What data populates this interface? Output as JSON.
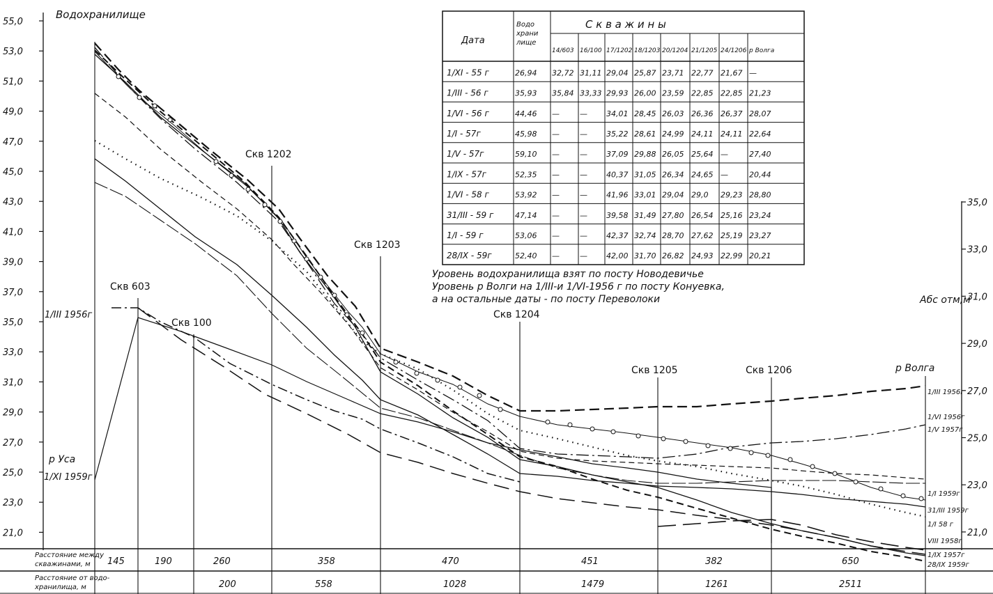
{
  "labels": {
    "reservoir": "Водохранилище",
    "usa": "р Уса",
    "usa_date": "1/XI 1959г",
    "marker_1956": "1/III 1956г",
    "volga": "р Волга",
    "abs": "Абс отм,м",
    "wells": [
      {
        "name": "Скв 603"
      },
      {
        "name": "Скв 100"
      },
      {
        "name": "Скв 1202"
      },
      {
        "name": "Скв 1203"
      },
      {
        "name": "Скв 1204"
      },
      {
        "name": "Скв 1205"
      },
      {
        "name": "Скв 1206"
      }
    ]
  },
  "left_axis_ticks": [
    "55,0",
    "53,0",
    "51,0",
    "49,0",
    "47,0",
    "45,0",
    "43,0",
    "41,0",
    "39,0",
    "37,0",
    "35,0",
    "33,0",
    "31,0",
    "29,0",
    "27,0",
    "25,0",
    "23,0",
    "21,0"
  ],
  "right_axis_ticks": [
    "35,0",
    "33,0",
    "31,0",
    "29,0",
    "27,0",
    "25,0",
    "23,0",
    "21,0"
  ],
  "right_line_labels": [
    "1/III 1956г",
    "1/VI 1956г",
    "1/V 1957г",
    "1/I 1959г",
    "31/III 1959г",
    "1/I 58 г",
    "VIII 1958г",
    "1/IX 1957г",
    "28/IX 1959г"
  ],
  "table": {
    "head_date": "Дата",
    "head_res": "Водо храни лище",
    "head_wells": "С к в а ж и н ы",
    "cols": [
      "14/603",
      "16/100",
      "17/1202",
      "18/1203",
      "20/1204",
      "21/1205",
      "24/1206",
      "р Волга"
    ],
    "rows": [
      [
        "1/XI - 55 г",
        "26,94",
        "32,72",
        "31,11",
        "29,04",
        "25,87",
        "23,71",
        "22,77",
        "21,67",
        "—"
      ],
      [
        "1/III - 56 г",
        "35,93",
        "35,84",
        "33,33",
        "29,93",
        "26,00",
        "23,59",
        "22,85",
        "22,85",
        "21,23"
      ],
      [
        "1/VI - 56 г",
        "44,46",
        "—",
        "—",
        "34,01",
        "28,45",
        "26,03",
        "26,36",
        "26,37",
        "28,07"
      ],
      [
        "1/I - 57г",
        "45,98",
        "—",
        "—",
        "35,22",
        "28,61",
        "24,99",
        "24,11",
        "24,11",
        "22,64"
      ],
      [
        "1/V - 57г",
        "59,10",
        "—",
        "—",
        "37,09",
        "29,88",
        "26,05",
        "25,64",
        "—",
        "27,40"
      ],
      [
        "1/IX - 57г",
        "52,35",
        "—",
        "—",
        "40,37",
        "31,05",
        "26,34",
        "24,65",
        "—",
        "20,44"
      ],
      [
        "1/VI - 58 г",
        "53,92",
        "—",
        "—",
        "41,96",
        "33,01",
        "29,04",
        "29,0",
        "29,23",
        "28,80"
      ],
      [
        "31/III - 59 г",
        "47,14",
        "—",
        "—",
        "39,58",
        "31,49",
        "27,80",
        "26,54",
        "25,16",
        "23,24"
      ],
      [
        "1/I - 59 г",
        "53,06",
        "—",
        "—",
        "42,37",
        "32,74",
        "28,70",
        "27,62",
        "25,19",
        "23,27"
      ],
      [
        "28/IX - 59г",
        "52,40",
        "—",
        "—",
        "42,00",
        "31,70",
        "26,82",
        "24,93",
        "22,99",
        "20,21"
      ]
    ]
  },
  "notes": [
    "Уровень водохранилища взят по посту Новодевичье",
    "Уровень р Волги на 1/III-и 1/VI-1956 г по посту Конуевка,",
    "а на остальные даты - по посту Переволоки"
  ],
  "bottom": {
    "row1_label": [
      "Расстояние между",
      "скважинами, м"
    ],
    "row2_label": [
      "Расстояние от водо-",
      "хранилища, м"
    ],
    "row1_values": [
      "145",
      "190",
      "260",
      "358",
      "470",
      "451",
      "382",
      "650"
    ],
    "row2_values": [
      "200",
      "558",
      "1028",
      "1479",
      "1261",
      "2511"
    ]
  }
}
